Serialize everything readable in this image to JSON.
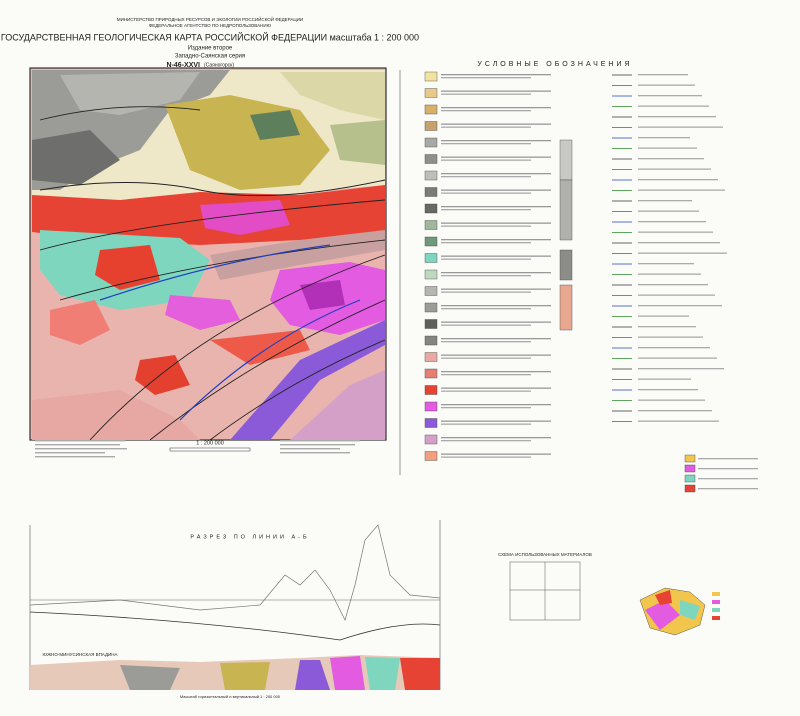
{
  "header": {
    "ministry": "МИНИСТЕРСТВО ПРИРОДНЫХ РЕСУРСОВ И ЭКОЛОГИИ РОССИЙСКОЙ ФЕДЕРАЦИИ",
    "agency": "ФЕДЕРАЛЬНОЕ АГЕНТСТВО ПО НЕДРОПОЛЬЗОВАНИЮ",
    "title": "ГОСУДАРСТВЕННАЯ ГЕОЛОГИЧЕСКАЯ КАРТА РОССИЙСКОЙ ФЕДЕРАЦИИ масштаба 1 : 200 000",
    "edition": "Издание второе",
    "series": "Западно-Саянская серия",
    "sheet": "N-46-XXVI",
    "sheet_name": "(Саяногорск)"
  },
  "map": {
    "scale": "1 : 200 000"
  },
  "legend": {
    "title": "УСЛОВНЫЕ ОБОЗНАЧЕНИЯ"
  },
  "section": {
    "title": "РАЗРЕЗ ПО ЛИНИИ А-Б",
    "region_label": "ЮЖНО-МИНУСИНСКАЯ ВПАДИНА",
    "scale_note": "Масштаб горизонтальный и вертикальный 1 : 200 000"
  },
  "materials_scheme": {
    "title": "СХЕМА ИСПОЛЬЗОВАННЫХ МАТЕРИАЛОВ"
  }
}
